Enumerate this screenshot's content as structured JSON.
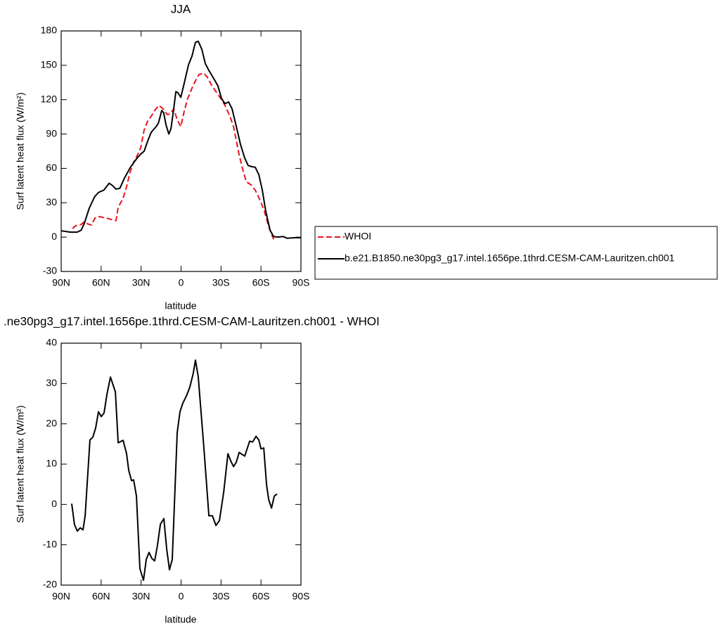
{
  "chart_data": [
    {
      "type": "line",
      "title": "JJA",
      "xlabel": "latitude",
      "ylabel": "Surf latent heat flux (W/m²)",
      "xlim": [
        90,
        -90
      ],
      "xticks": [
        {
          "value": 90,
          "label": "90N"
        },
        {
          "value": 60,
          "label": "60N"
        },
        {
          "value": 30,
          "label": "30N"
        },
        0,
        {
          "value": -30,
          "label": "30S"
        },
        {
          "value": -60,
          "label": "60S"
        },
        {
          "value": -90,
          "label": "90S"
        }
      ],
      "ylim": [
        -30,
        180
      ],
      "yticks": [
        -30,
        0,
        30,
        60,
        90,
        120,
        150,
        180
      ],
      "legend": "right",
      "series": [
        {
          "name": "WHOI",
          "color": "#e8141a",
          "linestyle": "dashed",
          "x": [
            81.5,
            79,
            75,
            72.6,
            70,
            67.3,
            64.7,
            62,
            57.8,
            54,
            50.4,
            48.8,
            47.2,
            43.5,
            40.9,
            38.3,
            35.6,
            33,
            30.3,
            27.7,
            25,
            22.4,
            19.8,
            16.6,
            13.5,
            10.3,
            8.2,
            5.5,
            2.9,
            0.2,
            -2.4,
            -5,
            -8.2,
            -10.8,
            -13.5,
            -17.2,
            -19.8,
            -22.5,
            -26.2,
            -30.4,
            -33,
            -36.7,
            -39.4,
            -41.5,
            -43.6,
            -46.2,
            -48.9,
            -52.6,
            -55.7,
            -59.4,
            -62.6,
            -65.2,
            -67.3,
            -69.5
          ],
          "values": [
            7.5,
            10,
            11,
            13.5,
            11.5,
            10.5,
            16.5,
            18,
            17,
            16,
            14.5,
            14.5,
            26,
            34,
            44,
            56.5,
            65.5,
            71,
            78,
            93.5,
            101.5,
            105.5,
            110.5,
            115,
            112,
            107,
            107.5,
            112,
            102.5,
            96.5,
            110,
            121,
            130,
            136.5,
            142,
            143,
            139.5,
            133.5,
            127,
            120,
            115,
            105.5,
            96.5,
            84,
            72,
            59.5,
            48.5,
            45.5,
            41,
            32,
            22.5,
            11.5,
            4.5,
            -2
          ]
        },
        {
          "name": "b.e21.B1850.ne30pg3_g17.intel.1656pe.1thrd.CESM-CAM-Lauritzen.ch001",
          "color": "#000000",
          "linestyle": "solid",
          "x": [
            90,
            83,
            78,
            75,
            72.6,
            69,
            65,
            62,
            58,
            54,
            51.5,
            49,
            46,
            42.5,
            38,
            33,
            30.3,
            27.7,
            25,
            22.4,
            18.7,
            17,
            14.5,
            13,
            11.3,
            9.2,
            7.6,
            5.5,
            3.9,
            2.3,
            0.2,
            -2.4,
            -5.6,
            -8.2,
            -10.8,
            -12.9,
            -15.6,
            -18.2,
            -20.9,
            -24,
            -27.7,
            -30.4,
            -33,
            -35.7,
            -38.3,
            -41.5,
            -44.6,
            -47.8,
            -50.4,
            -53.1,
            -55.7,
            -58.4,
            -61,
            -63.6,
            -66.8,
            -69.5,
            -72.6,
            -76.8,
            -79.5,
            -85.8,
            -90
          ],
          "values": [
            5.5,
            4.3,
            4.3,
            6,
            12,
            25,
            35,
            39,
            41,
            47,
            45,
            42,
            42.5,
            51.5,
            61,
            69,
            72.5,
            75,
            84,
            91.5,
            96.5,
            99.5,
            110.5,
            108.5,
            98,
            90,
            94.5,
            112,
            127,
            126,
            122,
            134.5,
            150.5,
            158,
            170,
            171,
            164,
            151.5,
            145.5,
            139.5,
            132,
            121,
            116.5,
            118,
            112,
            96.5,
            81,
            69,
            62.5,
            61.5,
            61,
            54.5,
            41,
            22.5,
            6,
            0.5,
            0,
            0.5,
            -1,
            -0.5,
            -0.5
          ]
        }
      ]
    },
    {
      "type": "line",
      "title": ".ne30pg3_g17.intel.1656pe.1thrd.CESM-CAM-Lauritzen.ch001 - WHOI",
      "xlabel": "latitude",
      "ylabel": "Surf latent heat flux (W/m²)",
      "xlim": [
        90,
        -90
      ],
      "xticks": [
        {
          "value": 90,
          "label": "90N"
        },
        {
          "value": 60,
          "label": "60N"
        },
        {
          "value": 30,
          "label": "30N"
        },
        0,
        {
          "value": -30,
          "label": "30S"
        },
        {
          "value": -60,
          "label": "60S"
        },
        {
          "value": -90,
          "label": "90S"
        }
      ],
      "ylim": [
        -20,
        40
      ],
      "yticks": [
        -20,
        -10,
        0,
        10,
        20,
        30,
        40
      ],
      "color": "#000000",
      "x": [
        82.1,
        80,
        77.9,
        75.7,
        73.6,
        72,
        68.4,
        66.2,
        64.1,
        62,
        59.9,
        57.8,
        55.6,
        53,
        49.3,
        47.2,
        43.5,
        40.9,
        39.3,
        37.2,
        35.6,
        33.5,
        30.9,
        28.2,
        26.1,
        24,
        21.9,
        19.8,
        17.7,
        15.5,
        12.9,
        10.8,
        8.7,
        6.6,
        2.9,
        0.8,
        -1.3,
        -4,
        -6.6,
        -9.2,
        -10.8,
        -12.9,
        -17.2,
        -20.9,
        -23.5,
        -26.2,
        -28.8,
        -32,
        -35.2,
        -37.3,
        -39.4,
        -41.5,
        -43.6,
        -47.8,
        -51.5,
        -53.7,
        -56.3,
        -58.4,
        -60,
        -62.1,
        -64.2,
        -65.8,
        -67.9,
        -70,
        -72.1
      ],
      "values": [
        0.2,
        -5,
        -6.6,
        -5.8,
        -6.3,
        -2.8,
        16,
        16.7,
        19,
        23,
        21.8,
        22.7,
        27.4,
        31.6,
        27.9,
        15.3,
        15.9,
        12.6,
        8.5,
        5.9,
        6.1,
        2.1,
        -15.9,
        -18.8,
        -13.6,
        -11.9,
        -13.4,
        -14,
        -10.1,
        -4.9,
        -3.5,
        -11,
        -16.2,
        -13.6,
        17.8,
        23,
        25.1,
        26.9,
        29.1,
        32.6,
        35.8,
        31.7,
        13.8,
        -2.8,
        -2.8,
        -5.2,
        -4,
        3,
        12.6,
        10.8,
        9.4,
        10.5,
        12.9,
        12,
        15.7,
        15.5,
        16.9,
        16,
        13.8,
        14,
        4.9,
        1.2,
        -0.9,
        2.1,
        2.6
      ]
    }
  ]
}
